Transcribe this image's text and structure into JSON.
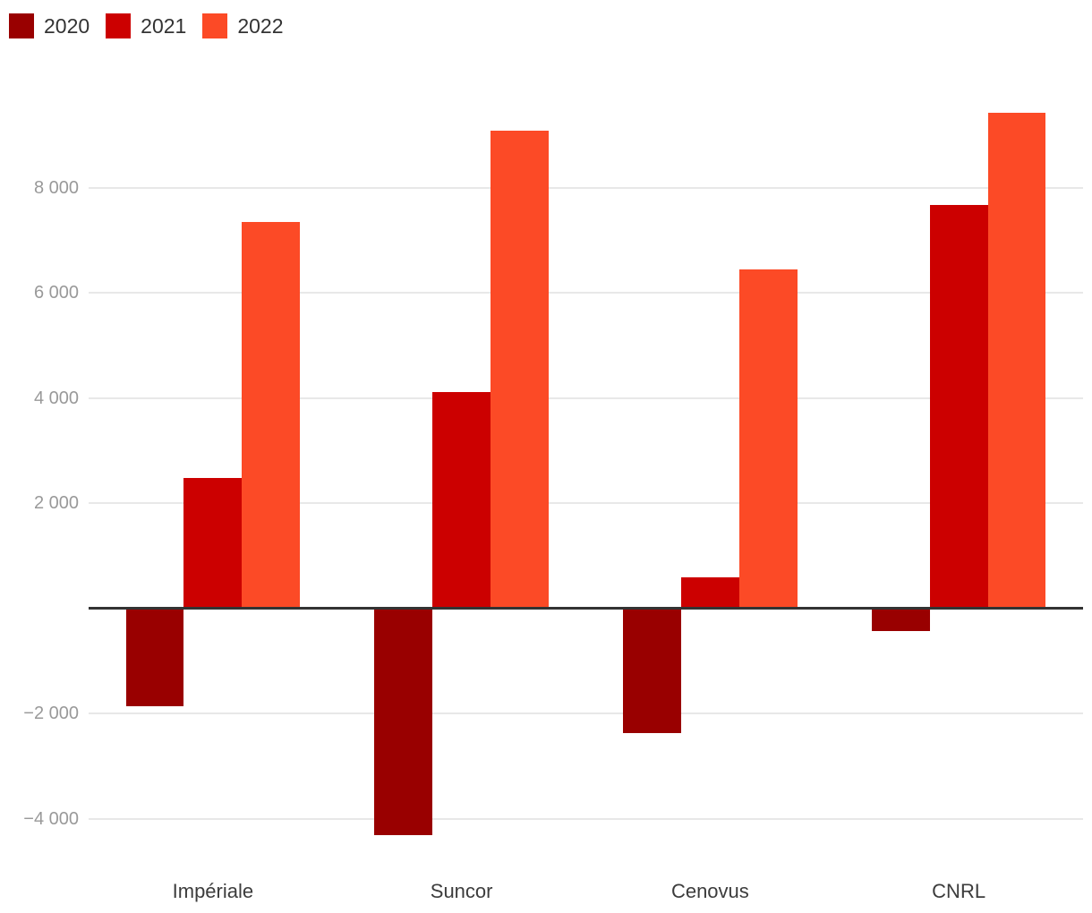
{
  "chart_data": {
    "type": "bar",
    "categories": [
      "Impériale",
      "Suncor",
      "Cenovus",
      "CNRL"
    ],
    "series": [
      {
        "name": "2020",
        "color": "#990000",
        "values": [
          -1857,
          -4319,
          -2379,
          -435
        ]
      },
      {
        "name": "2021",
        "color": "#cc0000",
        "values": [
          2479,
          4119,
          587,
          7664
        ]
      },
      {
        "name": "2022",
        "color": "#fc4a26",
        "values": [
          7340,
          9077,
          6450,
          9420
        ]
      }
    ],
    "y_axis": {
      "ticks": [
        {
          "value": 8000,
          "label": "8 000"
        },
        {
          "value": 6000,
          "label": "6 000"
        },
        {
          "value": 4000,
          "label": "4 000"
        },
        {
          "value": 2000,
          "label": "2 000"
        },
        {
          "value": -2000,
          "label": "−2 000"
        },
        {
          "value": -4000,
          "label": "−4 000"
        }
      ],
      "range": [
        -4800,
        9900
      ],
      "zero_line": true,
      "zero_line_color": "#333333",
      "grid_color": "#e8e8e8",
      "tick_color": "#999999"
    },
    "grid": true,
    "legend_position": "top-left",
    "title": "",
    "xlabel": "",
    "ylabel": ""
  }
}
